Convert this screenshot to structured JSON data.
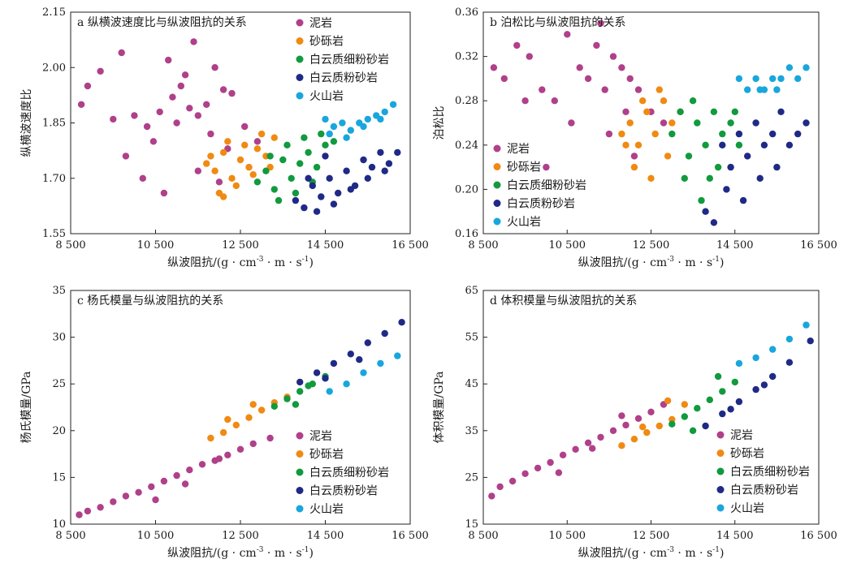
{
  "figure": {
    "x_unit_superscript_1": "-3",
    "x_unit_superscript_2": "-1"
  },
  "colors": {
    "泥岩": "#b0408a",
    "砂砾岩": "#f08a12",
    "白云质细粉砂岩": "#119a3e",
    "白云质粉砂岩": "#1f2a86",
    "火山岩": "#19a6dd"
  },
  "legend_labels": [
    "泥岩",
    "砂砾岩",
    "白云质细粉砂岩",
    "白云质粉砂岩",
    "火山岩"
  ],
  "chart_data": [
    {
      "id": "a",
      "type": "scatter",
      "title": "a 纵横波速度比与纵波阻抗的关系",
      "xlabel": "纵波阻抗/(g · cm · m · s)",
      "ylabel": "纵横波速度比",
      "xlim": [
        8500,
        16500
      ],
      "ylim": [
        1.55,
        2.15
      ],
      "xticks": [
        8500,
        10500,
        12500,
        14500,
        16500
      ],
      "xtick_labels": [
        "8 500",
        "10 500",
        "12 500",
        "14 500",
        "16 500"
      ],
      "yticks": [
        1.55,
        1.7,
        1.85,
        2.0,
        2.15
      ],
      "ytick_labels": [
        "1.55",
        "1.70",
        "1.85",
        "2.00",
        "2.15"
      ],
      "grid": false,
      "legend_position": "top-right",
      "series": [
        {
          "name": "泥岩",
          "x": [
            8750,
            8900,
            9200,
            9500,
            9700,
            10000,
            10300,
            10450,
            10600,
            10800,
            10900,
            11000,
            11100,
            11200,
            11300,
            11500,
            11700,
            11900,
            12100,
            12300,
            12600,
            12900,
            10700,
            11500,
            12000,
            9800,
            10200,
            11400,
            11800,
            12200
          ],
          "y": [
            1.9,
            1.95,
            1.99,
            1.86,
            2.04,
            1.87,
            1.84,
            1.8,
            1.88,
            2.02,
            1.92,
            1.85,
            1.95,
            1.98,
            1.89,
            1.87,
            1.9,
            2.0,
            1.94,
            1.93,
            1.84,
            1.8,
            1.66,
            1.72,
            1.69,
            1.76,
            1.7,
            2.07,
            1.82,
            1.78
          ]
        },
        {
          "name": "砂砾岩",
          "x": [
            11700,
            11900,
            12100,
            12300,
            12500,
            12700,
            12900,
            13100,
            13300,
            12000,
            12400,
            12800,
            13200,
            12200,
            12600,
            13000,
            11800,
            12100
          ],
          "y": [
            1.74,
            1.72,
            1.77,
            1.7,
            1.75,
            1.73,
            1.78,
            1.76,
            1.81,
            1.66,
            1.68,
            1.71,
            1.73,
            1.8,
            1.79,
            1.82,
            1.76,
            1.65
          ]
        },
        {
          "name": "白云质细粉砂岩",
          "x": [
            12900,
            13100,
            13300,
            13500,
            13700,
            13900,
            14100,
            14300,
            14500,
            14700,
            13200,
            13600,
            14000,
            14400,
            13400,
            13800,
            14200
          ],
          "y": [
            1.69,
            1.72,
            1.67,
            1.75,
            1.7,
            1.74,
            1.77,
            1.73,
            1.79,
            1.8,
            1.76,
            1.79,
            1.81,
            1.82,
            1.64,
            1.66,
            1.69
          ]
        },
        {
          "name": "白云质粉砂岩",
          "x": [
            13800,
            14000,
            14200,
            14400,
            14600,
            14800,
            15000,
            15200,
            15400,
            15600,
            15800,
            16000,
            16200,
            14300,
            14700,
            15100,
            15500,
            15900,
            14100,
            14500
          ],
          "y": [
            1.64,
            1.62,
            1.68,
            1.65,
            1.7,
            1.66,
            1.72,
            1.68,
            1.75,
            1.73,
            1.77,
            1.74,
            1.77,
            1.61,
            1.63,
            1.67,
            1.7,
            1.72,
            1.7,
            1.76
          ]
        },
        {
          "name": "火山岩",
          "x": [
            14500,
            14700,
            14900,
            15100,
            15300,
            15500,
            15700,
            15900,
            16100,
            14600,
            15000,
            15400,
            15800
          ],
          "y": [
            1.86,
            1.84,
            1.85,
            1.83,
            1.85,
            1.86,
            1.87,
            1.88,
            1.9,
            1.82,
            1.81,
            1.84,
            1.86
          ]
        }
      ]
    },
    {
      "id": "b",
      "type": "scatter",
      "title": "b 泊松比与纵波阻抗的关系",
      "xlabel": "纵波阻抗/(g · cm · m · s)",
      "ylabel": "泊松比",
      "xlim": [
        8500,
        16500
      ],
      "ylim": [
        0.16,
        0.36
      ],
      "xticks": [
        8500,
        10500,
        12500,
        14500,
        16500
      ],
      "xtick_labels": [
        "8 500",
        "10 500",
        "12 500",
        "14 500",
        "16 500"
      ],
      "yticks": [
        0.16,
        0.2,
        0.24,
        0.28,
        0.32,
        0.36
      ],
      "ytick_labels": [
        "0.16",
        "0.20",
        "0.24",
        "0.28",
        "0.32",
        "0.36"
      ],
      "grid": false,
      "legend_position": "bottom-left",
      "series": [
        {
          "name": "泥岩",
          "x": [
            8750,
            9000,
            9300,
            9600,
            9900,
            10200,
            10500,
            10800,
            11000,
            11200,
            11400,
            11600,
            11800,
            12000,
            12200,
            12500,
            12800,
            10600,
            11500,
            12100,
            9500,
            10000,
            11300,
            11900
          ],
          "y": [
            0.31,
            0.3,
            0.33,
            0.32,
            0.29,
            0.28,
            0.34,
            0.31,
            0.3,
            0.33,
            0.29,
            0.32,
            0.31,
            0.3,
            0.29,
            0.27,
            0.26,
            0.26,
            0.25,
            0.23,
            0.28,
            0.22,
            0.35,
            0.27
          ]
        },
        {
          "name": "砂砾岩",
          "x": [
            11800,
            12000,
            12200,
            12400,
            12600,
            12800,
            13000,
            13200,
            12100,
            12500,
            12900,
            11900,
            12300,
            12700
          ],
          "y": [
            0.25,
            0.26,
            0.24,
            0.27,
            0.25,
            0.28,
            0.26,
            0.27,
            0.22,
            0.21,
            0.23,
            0.24,
            0.28,
            0.29
          ]
        },
        {
          "name": "白云质细粉砂岩",
          "x": [
            13000,
            13200,
            13400,
            13600,
            13800,
            14000,
            14200,
            14400,
            14600,
            13300,
            13700,
            14100,
            14500,
            13500,
            13900
          ],
          "y": [
            0.25,
            0.27,
            0.23,
            0.26,
            0.24,
            0.27,
            0.25,
            0.26,
            0.24,
            0.21,
            0.19,
            0.22,
            0.27,
            0.28,
            0.21
          ]
        },
        {
          "name": "白云质粉砂岩",
          "x": [
            14200,
            14400,
            14600,
            14800,
            15000,
            15200,
            15400,
            15600,
            15800,
            16000,
            16200,
            14300,
            14700,
            15100,
            15500,
            13800,
            14000
          ],
          "y": [
            0.24,
            0.22,
            0.25,
            0.23,
            0.26,
            0.24,
            0.25,
            0.27,
            0.24,
            0.25,
            0.26,
            0.2,
            0.19,
            0.21,
            0.22,
            0.18,
            0.17
          ]
        },
        {
          "name": "火山岩",
          "x": [
            14600,
            14800,
            15000,
            15200,
            15400,
            15600,
            15800,
            16000,
            16200,
            15100,
            15500
          ],
          "y": [
            0.3,
            0.29,
            0.3,
            0.29,
            0.3,
            0.3,
            0.31,
            0.3,
            0.31,
            0.29,
            0.29
          ]
        }
      ]
    },
    {
      "id": "c",
      "type": "scatter",
      "title": "c 杨氏模量与纵波阻抗的关系",
      "xlabel": "纵波阻抗/(g · cm · m · s)",
      "ylabel": "杨氏模量/GPa",
      "xlim": [
        8500,
        16500
      ],
      "ylim": [
        10,
        35
      ],
      "xticks": [
        8500,
        10500,
        12500,
        14500,
        16500
      ],
      "xtick_labels": [
        "8 500",
        "10 500",
        "12 500",
        "14 500",
        "16 500"
      ],
      "yticks": [
        10,
        15,
        20,
        25,
        30,
        35
      ],
      "ytick_labels": [
        "10",
        "15",
        "20",
        "25",
        "30",
        "35"
      ],
      "grid": false,
      "legend_position": "bottom-right",
      "series": [
        {
          "name": "泥岩",
          "x": [
            8700,
            8900,
            9200,
            9500,
            9800,
            10100,
            10400,
            10700,
            11000,
            11300,
            11600,
            11900,
            12200,
            12500,
            12800,
            13200,
            10500,
            11200,
            12000
          ],
          "y": [
            11.0,
            11.4,
            11.8,
            12.4,
            13.0,
            13.4,
            14.0,
            14.6,
            15.2,
            15.8,
            16.4,
            16.8,
            17.4,
            18.0,
            18.6,
            19.2,
            12.6,
            14.3,
            17.0
          ]
        },
        {
          "name": "砂砾岩",
          "x": [
            11800,
            12100,
            12400,
            12700,
            13000,
            13300,
            13600,
            12200,
            12800
          ],
          "y": [
            19.2,
            19.8,
            20.6,
            21.4,
            22.2,
            23.0,
            23.6,
            21.2,
            22.8
          ]
        },
        {
          "name": "白云质细粉砂岩",
          "x": [
            13300,
            13600,
            13900,
            14200,
            14500,
            13800,
            14100
          ],
          "y": [
            22.6,
            23.4,
            24.2,
            25.0,
            25.8,
            22.8,
            24.8
          ]
        },
        {
          "name": "白云质粉砂岩",
          "x": [
            13900,
            14300,
            14700,
            15100,
            15500,
            15900,
            16300,
            14500,
            15300
          ],
          "y": [
            25.2,
            26.2,
            27.2,
            28.2,
            29.4,
            30.4,
            31.6,
            25.6,
            27.6
          ]
        },
        {
          "name": "火山岩",
          "x": [
            14600,
            15000,
            15400,
            15800,
            16200
          ],
          "y": [
            24.2,
            25.0,
            26.2,
            27.2,
            28.0
          ]
        }
      ]
    },
    {
      "id": "d",
      "type": "scatter",
      "title": "d 体积模量与纵波阻抗的关系",
      "xlabel": "纵波阻抗/(g · cm · m · s)",
      "ylabel": "体积模量/GPa",
      "xlim": [
        8500,
        16500
      ],
      "ylim": [
        15,
        65
      ],
      "xticks": [
        8500,
        10500,
        12500,
        14500,
        16500
      ],
      "xtick_labels": [
        "8 500",
        "10 500",
        "12 500",
        "14 500",
        "16 500"
      ],
      "yticks": [
        15,
        25,
        35,
        45,
        55,
        65
      ],
      "ytick_labels": [
        "15",
        "25",
        "35",
        "45",
        "55",
        "65"
      ],
      "grid": false,
      "legend_position": "bottom-right",
      "series": [
        {
          "name": "泥岩",
          "x": [
            8700,
            8900,
            9200,
            9500,
            9800,
            10100,
            10400,
            10700,
            11000,
            11300,
            11600,
            11900,
            12200,
            12500,
            12800,
            10300,
            11100,
            11800
          ],
          "y": [
            21.0,
            23.0,
            24.2,
            25.8,
            27.0,
            28.2,
            29.8,
            31.0,
            32.4,
            33.6,
            35.0,
            36.2,
            37.6,
            39.0,
            40.6,
            26.0,
            31.2,
            38.2
          ]
        },
        {
          "name": "砂砾岩",
          "x": [
            11800,
            12100,
            12400,
            12700,
            13000,
            13300,
            12300,
            12900
          ],
          "y": [
            31.8,
            33.2,
            34.6,
            36.0,
            37.4,
            40.6,
            35.8,
            41.4
          ]
        },
        {
          "name": "白云质细粉砂岩",
          "x": [
            13000,
            13300,
            13600,
            13900,
            14200,
            14500,
            13500,
            14100
          ],
          "y": [
            36.4,
            38.0,
            39.8,
            41.6,
            43.4,
            45.4,
            35.0,
            46.6
          ]
        },
        {
          "name": "白云质粉砂岩",
          "x": [
            13800,
            14200,
            14600,
            15000,
            15400,
            15800,
            16300,
            14400,
            15200
          ],
          "y": [
            36.0,
            38.6,
            41.2,
            43.8,
            46.6,
            49.6,
            54.2,
            39.6,
            44.8
          ]
        },
        {
          "name": "火山岩",
          "x": [
            14600,
            15000,
            15400,
            15800,
            16200
          ],
          "y": [
            49.4,
            50.6,
            52.4,
            54.6,
            57.6
          ]
        }
      ]
    }
  ]
}
